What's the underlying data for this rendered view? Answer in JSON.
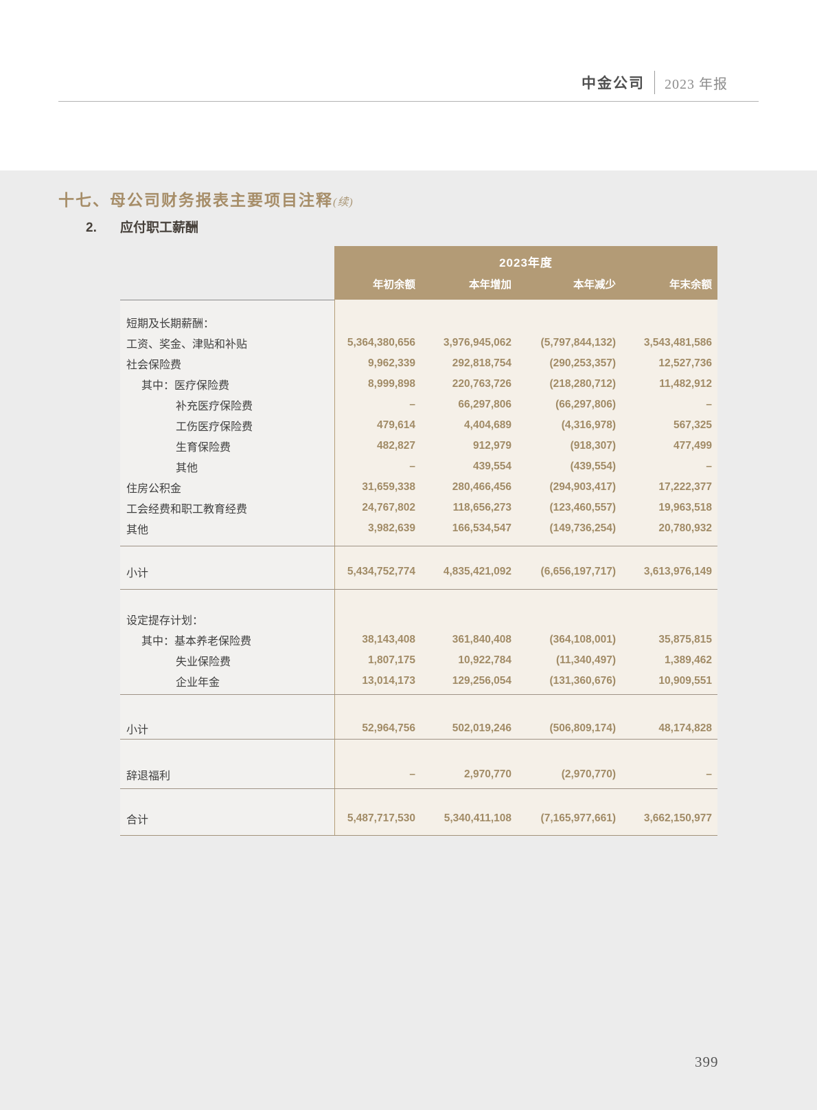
{
  "page_header": {
    "company": "中金公司",
    "report": "2023 年报"
  },
  "section_title": {
    "number": "十七、",
    "text": "母公司财务报表主要项目注释",
    "suffix": "(续)"
  },
  "subsection": {
    "number": "2.",
    "title": "应付职工薪酬"
  },
  "colors": {
    "page_band": "#ececec",
    "table_header_bg": "#b39b76",
    "label_column_bg": "#f2f1ef",
    "data_area_bg": "#f5f0e8",
    "value_text": "#a18b66",
    "title_gold": "#a68d68"
  },
  "table": {
    "period_header": "2023年度",
    "columns": [
      "年初余额",
      "本年增加",
      "本年减少",
      "年末余额"
    ],
    "sections": [
      {
        "rows": [
          {
            "label": "短期及长期薪酬：",
            "indent": 0,
            "values": [
              "",
              "",
              "",
              ""
            ]
          },
          {
            "label": "工资、奖金、津贴和补贴",
            "indent": 0,
            "values": [
              "5,364,380,656",
              "3,976,945,062",
              "(5,797,844,132)",
              "3,543,481,586"
            ]
          },
          {
            "label": "社会保险费",
            "indent": 0,
            "values": [
              "9,962,339",
              "292,818,754",
              "(290,253,357)",
              "12,527,736"
            ]
          },
          {
            "label": "其中：医疗保险费",
            "indent": 1,
            "values": [
              "8,999,898",
              "220,763,726",
              "(218,280,712)",
              "11,482,912"
            ]
          },
          {
            "label": "补充医疗保险费",
            "indent": 2,
            "values": [
              "–",
              "66,297,806",
              "(66,297,806)",
              "–"
            ]
          },
          {
            "label": "工伤医疗保险费",
            "indent": 2,
            "values": [
              "479,614",
              "4,404,689",
              "(4,316,978)",
              "567,325"
            ]
          },
          {
            "label": "生育保险费",
            "indent": 2,
            "values": [
              "482,827",
              "912,979",
              "(918,307)",
              "477,499"
            ]
          },
          {
            "label": "其他",
            "indent": 2,
            "values": [
              "–",
              "439,554",
              "(439,554)",
              "–"
            ]
          },
          {
            "label": "住房公积金",
            "indent": 0,
            "values": [
              "31,659,338",
              "280,466,456",
              "(294,903,417)",
              "17,222,377"
            ]
          },
          {
            "label": "工会经费和职工教育经费",
            "indent": 0,
            "values": [
              "24,767,802",
              "118,656,273",
              "(123,460,557)",
              "19,963,518"
            ]
          },
          {
            "label": "其他",
            "indent": 0,
            "values": [
              "3,982,639",
              "166,534,547",
              "(149,736,254)",
              "20,780,932"
            ]
          }
        ]
      },
      {
        "rows": [
          {
            "label": "小计",
            "indent": 0,
            "values": [
              "5,434,752,774",
              "4,835,421,092",
              "(6,656,197,717)",
              "3,613,976,149"
            ]
          }
        ]
      },
      {
        "rows": [
          {
            "label": "设定提存计划：",
            "indent": 0,
            "values": [
              "",
              "",
              "",
              ""
            ]
          },
          {
            "label": "其中：基本养老保险费",
            "indent": 1,
            "values": [
              "38,143,408",
              "361,840,408",
              "(364,108,001)",
              "35,875,815"
            ]
          },
          {
            "label": "失业保险费",
            "indent": 2,
            "values": [
              "1,807,175",
              "10,922,784",
              "(11,340,497)",
              "1,389,462"
            ]
          },
          {
            "label": "企业年金",
            "indent": 2,
            "values": [
              "13,014,173",
              "129,256,054",
              "(131,360,676)",
              "10,909,551"
            ]
          }
        ]
      },
      {
        "rows": [
          {
            "label": "小计",
            "indent": 0,
            "values": [
              "52,964,756",
              "502,019,246",
              "(506,809,174)",
              "48,174,828"
            ]
          }
        ]
      },
      {
        "rows": [
          {
            "label": "辞退福利",
            "indent": 0,
            "values": [
              "–",
              "2,970,770",
              "(2,970,770)",
              "–"
            ]
          }
        ]
      },
      {
        "rows": [
          {
            "label": "合计",
            "indent": 0,
            "values": [
              "5,487,717,530",
              "5,340,411,108",
              "(7,165,977,661)",
              "3,662,150,977"
            ]
          }
        ]
      }
    ]
  },
  "page_number": "399"
}
